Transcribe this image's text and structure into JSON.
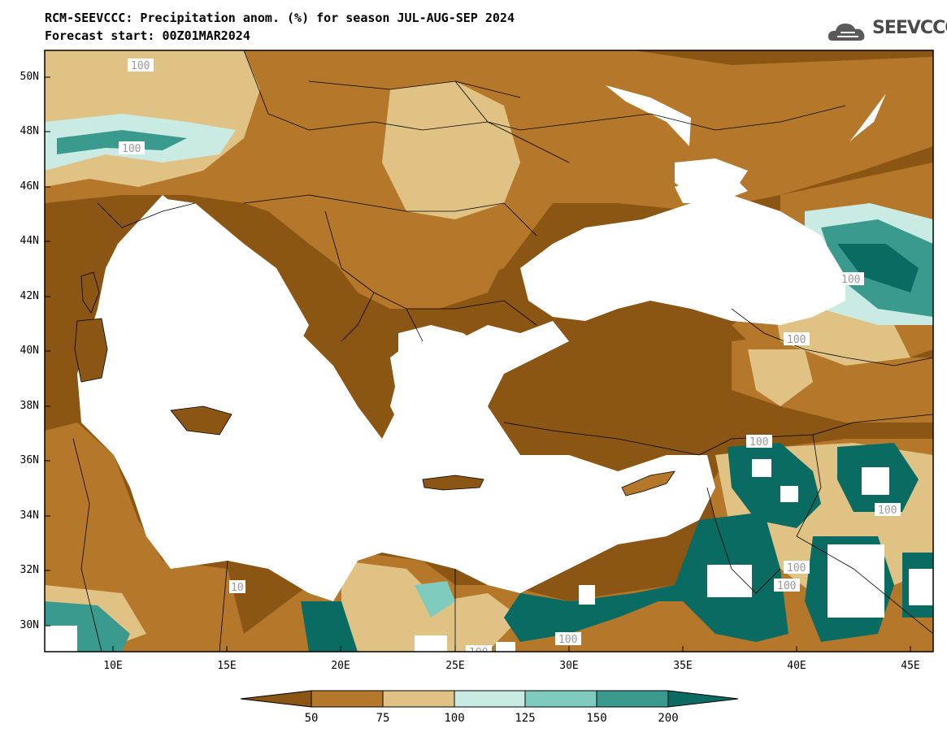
{
  "title_line1": "RCM-SEEVCCC: Precipitation anom. (%) for season JUL-AUG-SEP 2024",
  "title_line2": "Forecast start: 00Z01MAR2024",
  "logo_text": "SEEVCCC",
  "lat_ticks": [
    "50N",
    "48N",
    "46N",
    "44N",
    "42N",
    "40N",
    "38N",
    "36N",
    "34N",
    "32N",
    "30N"
  ],
  "lon_ticks": [
    "10E",
    "15E",
    "20E",
    "25E",
    "30E",
    "35E",
    "40E",
    "45E"
  ],
  "colorbar": {
    "labels": [
      "50",
      "75",
      "100",
      "125",
      "150",
      "200"
    ],
    "colors": [
      "#8b5513",
      "#b5782a",
      "#dfc284",
      "#c9ebe4",
      "#7fcbbd",
      "#3b9a8e",
      "#0a6b62"
    ]
  },
  "contour_labels": [
    "100",
    "100",
    "100",
    "100",
    "100",
    "100",
    "100",
    "100",
    "100",
    "10",
    "100",
    "100"
  ],
  "colors": {
    "dry_strong": "#8b5513",
    "dry": "#b5782a",
    "dry_light": "#dfc284",
    "wet_light": "#c9ebe4",
    "wet": "#7fcbbd",
    "wet_mid": "#3b9a8e",
    "wet_strong": "#0a6b62",
    "sea": "#ffffff"
  }
}
